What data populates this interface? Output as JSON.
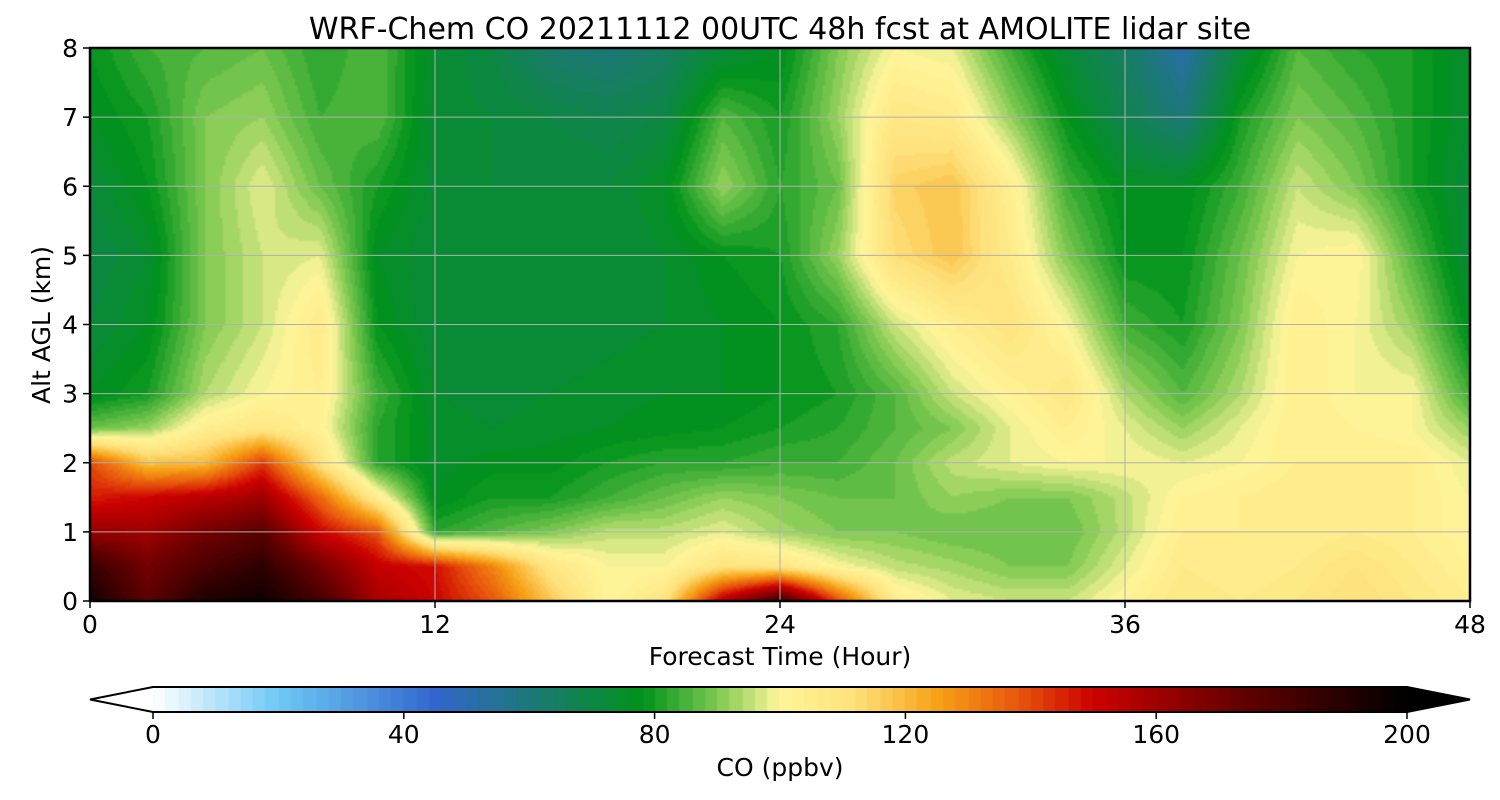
{
  "chart_data": {
    "type": "heatmap",
    "title": "WRF-Chem CO  20211112 00UTC 48h fcst at AMOLITE lidar site",
    "xlabel": "Forecast Time (Hour)",
    "ylabel": "Alt AGL (km)",
    "xlim": [
      0,
      48
    ],
    "ylim": [
      0,
      8
    ],
    "xticks": [
      "0",
      "12",
      "24",
      "36",
      "48"
    ],
    "yticks": [
      "0",
      "1",
      "2",
      "3",
      "4",
      "5",
      "6",
      "7",
      "8"
    ],
    "grid": true,
    "colorbar": {
      "label": "CO  (ppbv)",
      "range": [
        0,
        200
      ],
      "ticks": [
        "0",
        "40",
        "80",
        "120",
        "160",
        "200"
      ],
      "extend": "both",
      "colors": {
        "0": "#ffffff",
        "20": "#6ec8f5",
        "45": "#3366cc",
        "62": "#1a7a6e",
        "78": "#00921a",
        "90": "#7dc850",
        "100": "#fff59a",
        "112": "#fde07a",
        "125": "#f7a216",
        "138": "#e8560c",
        "150": "#cc0000",
        "172": "#6a0000",
        "200": "#000000"
      }
    },
    "hours": [
      0,
      2,
      4,
      6,
      8,
      10,
      12,
      14,
      16,
      18,
      20,
      22,
      24,
      26,
      28,
      30,
      32,
      34,
      36,
      38,
      40,
      42,
      44,
      46,
      48
    ],
    "altitudes_km": [
      0,
      0.5,
      1,
      1.5,
      2,
      2.5,
      3,
      4,
      5,
      6,
      7,
      8
    ],
    "co_ppbv": [
      [
        195,
        175,
        192,
        196,
        182,
        158,
        150,
        138,
        118,
        100,
        110,
        155,
        185,
        140,
        105,
        98,
        96,
        96,
        102,
        108,
        106,
        108,
        112,
        108,
        104
      ],
      [
        185,
        170,
        180,
        188,
        170,
        152,
        148,
        130,
        108,
        100,
        100,
        110,
        108,
        100,
        95,
        93,
        90,
        90,
        98,
        106,
        104,
        106,
        110,
        106,
        102
      ],
      [
        162,
        160,
        170,
        176,
        150,
        138,
        82,
        86,
        90,
        95,
        95,
        98,
        93,
        90,
        90,
        88,
        88,
        88,
        95,
        104,
        104,
        104,
        106,
        104,
        100
      ],
      [
        146,
        150,
        154,
        160,
        135,
        104,
        76,
        80,
        80,
        84,
        88,
        92,
        90,
        88,
        88,
        92,
        90,
        90,
        95,
        102,
        104,
        106,
        104,
        104,
        100
      ],
      [
        140,
        118,
        120,
        142,
        110,
        82,
        75,
        77,
        77,
        80,
        82,
        82,
        84,
        84,
        88,
        95,
        98,
        100,
        100,
        98,
        100,
        104,
        104,
        104,
        98
      ],
      [
        88,
        92,
        104,
        108,
        102,
        82,
        75,
        74,
        75,
        76,
        77,
        78,
        80,
        82,
        86,
        90,
        98,
        104,
        98,
        92,
        98,
        104,
        102,
        100,
        92
      ],
      [
        76,
        80,
        94,
        100,
        104,
        84,
        74,
        73,
        74,
        75,
        76,
        76,
        78,
        80,
        86,
        96,
        102,
        108,
        94,
        86,
        94,
        104,
        100,
        100,
        84
      ],
      [
        72,
        76,
        90,
        96,
        106,
        78,
        72,
        72,
        72,
        73,
        74,
        76,
        78,
        82,
        96,
        104,
        110,
        100,
        84,
        80,
        90,
        104,
        100,
        92,
        76
      ],
      [
        70,
        74,
        90,
        96,
        98,
        76,
        72,
        72,
        72,
        72,
        74,
        78,
        80,
        92,
        112,
        118,
        106,
        90,
        78,
        78,
        88,
        100,
        102,
        86,
        72
      ],
      [
        72,
        78,
        90,
        98,
        88,
        80,
        73,
        72,
        72,
        72,
        76,
        92,
        82,
        88,
        115,
        118,
        104,
        84,
        76,
        76,
        84,
        96,
        90,
        80,
        72
      ],
      [
        76,
        80,
        90,
        92,
        84,
        86,
        73,
        72,
        70,
        68,
        70,
        86,
        80,
        92,
        108,
        106,
        92,
        78,
        68,
        60,
        80,
        90,
        86,
        80,
        74
      ],
      [
        78,
        84,
        86,
        88,
        82,
        86,
        74,
        70,
        62,
        60,
        64,
        72,
        76,
        90,
        100,
        98,
        84,
        72,
        64,
        52,
        72,
        86,
        82,
        80,
        74
      ]
    ]
  }
}
